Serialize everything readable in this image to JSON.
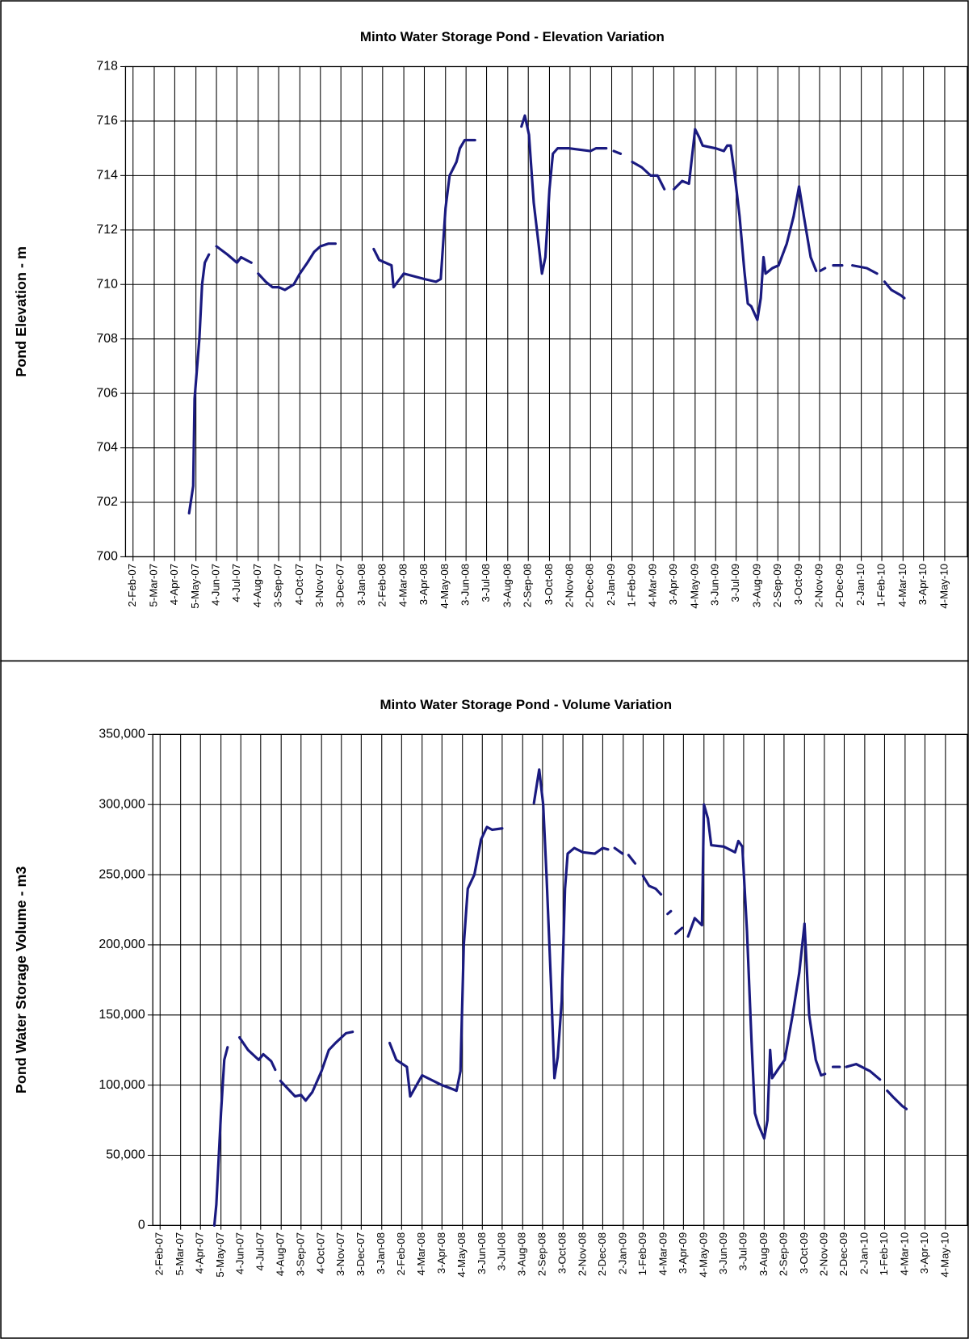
{
  "chart_data": [
    {
      "type": "line",
      "title": "Minto Water Storage Pond - Elevation Variation",
      "y_label": "Pond Elevation - m",
      "grid": true,
      "xlim": [
        "2007-01-22",
        "2010-06-06"
      ],
      "ylim": [
        700,
        718
      ],
      "yticks": [
        700,
        702,
        704,
        706,
        708,
        710,
        712,
        714,
        716,
        718
      ],
      "xticks": [
        {
          "value": "2007-02-02",
          "label": "2-Feb-07"
        },
        {
          "value": "2007-03-05",
          "label": "5-Mar-07"
        },
        {
          "value": "2007-04-04",
          "label": "4-Apr-07"
        },
        {
          "value": "2007-05-05",
          "label": "5-May-07"
        },
        {
          "value": "2007-06-04",
          "label": "4-Jun-07"
        },
        {
          "value": "2007-07-04",
          "label": "4-Jul-07"
        },
        {
          "value": "2007-08-04",
          "label": "4-Aug-07"
        },
        {
          "value": "2007-09-03",
          "label": "3-Sep-07"
        },
        {
          "value": "2007-10-04",
          "label": "4-Oct-07"
        },
        {
          "value": "2007-11-03",
          "label": "3-Nov-07"
        },
        {
          "value": "2007-12-03",
          "label": "3-Dec-07"
        },
        {
          "value": "2008-01-03",
          "label": "3-Jan-08"
        },
        {
          "value": "2008-02-02",
          "label": "2-Feb-08"
        },
        {
          "value": "2008-03-04",
          "label": "4-Mar-08"
        },
        {
          "value": "2008-04-03",
          "label": "3-Apr-08"
        },
        {
          "value": "2008-05-04",
          "label": "4-May-08"
        },
        {
          "value": "2008-06-03",
          "label": "3-Jun-08"
        },
        {
          "value": "2008-07-03",
          "label": "3-Jul-08"
        },
        {
          "value": "2008-08-03",
          "label": "3-Aug-08"
        },
        {
          "value": "2008-09-02",
          "label": "2-Sep-08"
        },
        {
          "value": "2008-10-03",
          "label": "3-Oct-08"
        },
        {
          "value": "2008-11-02",
          "label": "2-Nov-08"
        },
        {
          "value": "2008-12-02",
          "label": "2-Dec-08"
        },
        {
          "value": "2009-01-02",
          "label": "2-Jan-09"
        },
        {
          "value": "2009-02-01",
          "label": "1-Feb-09"
        },
        {
          "value": "2009-03-04",
          "label": "4-Mar-09"
        },
        {
          "value": "2009-04-03",
          "label": "3-Apr-09"
        },
        {
          "value": "2009-05-04",
          "label": "4-May-09"
        },
        {
          "value": "2009-06-03",
          "label": "3-Jun-09"
        },
        {
          "value": "2009-07-03",
          "label": "3-Jul-09"
        },
        {
          "value": "2009-08-03",
          "label": "3-Aug-09"
        },
        {
          "value": "2009-09-02",
          "label": "2-Sep-09"
        },
        {
          "value": "2009-10-03",
          "label": "3-Oct-09"
        },
        {
          "value": "2009-11-02",
          "label": "2-Nov-09"
        },
        {
          "value": "2009-12-02",
          "label": "2-Dec-09"
        },
        {
          "value": "2010-01-02",
          "label": "2-Jan-10"
        },
        {
          "value": "2010-02-01",
          "label": "1-Feb-10"
        },
        {
          "value": "2010-03-04",
          "label": "4-Mar-10"
        },
        {
          "value": "2010-04-03",
          "label": "3-Apr-10"
        },
        {
          "value": "2010-05-04",
          "label": "4-May-10"
        }
      ],
      "x": [
        "2007-04-25",
        "2007-05-01",
        "2007-05-03",
        "2007-05-10",
        "2007-05-14",
        "2007-05-18",
        "2007-05-24",
        "2007-05-29",
        "2007-06-04",
        "2007-06-20",
        "2007-07-04",
        "2007-07-10",
        "2007-07-25",
        "2007-07-30",
        "2007-08-04",
        "2007-08-15",
        "2007-08-25",
        "2007-09-03",
        "2007-09-12",
        "2007-09-25",
        "2007-10-04",
        "2007-10-15",
        "2007-10-25",
        "2007-11-03",
        "2007-11-15",
        "2007-11-25",
        "2007-12-20",
        "2008-01-20",
        "2008-01-28",
        "2008-02-15",
        "2008-02-18",
        "2008-03-04",
        "2008-04-03",
        "2008-04-20",
        "2008-04-27",
        "2008-05-04",
        "2008-05-10",
        "2008-05-20",
        "2008-05-25",
        "2008-06-01",
        "2008-06-16",
        "2008-07-20",
        "2008-08-23",
        "2008-08-28",
        "2008-09-03",
        "2008-09-10",
        "2008-09-17",
        "2008-09-22",
        "2008-09-27",
        "2008-10-03",
        "2008-10-08",
        "2008-10-15",
        "2008-11-01",
        "2008-12-02",
        "2008-12-10",
        "2008-12-25",
        "2008-12-30",
        "2009-01-05",
        "2009-01-15",
        "2009-01-24",
        "2009-02-01",
        "2009-02-15",
        "2009-02-28",
        "2009-03-10",
        "2009-03-20",
        "2009-03-27",
        "2009-04-03",
        "2009-04-15",
        "2009-04-25",
        "2009-05-04",
        "2009-05-10",
        "2009-05-15",
        "2009-06-03",
        "2009-06-15",
        "2009-06-20",
        "2009-06-25",
        "2009-07-01",
        "2009-07-08",
        "2009-07-15",
        "2009-07-20",
        "2009-07-25",
        "2009-08-03",
        "2009-08-08",
        "2009-08-12",
        "2009-08-15",
        "2009-08-25",
        "2009-09-03",
        "2009-09-15",
        "2009-09-25",
        "2009-10-03",
        "2009-10-10",
        "2009-10-20",
        "2009-10-28",
        "2009-10-31",
        "2009-11-03",
        "2009-11-10",
        "2009-11-16",
        "2009-11-22",
        "2009-12-05",
        "2009-12-12",
        "2009-12-20",
        "2010-01-10",
        "2010-01-25",
        "2010-01-30",
        "2010-02-05",
        "2010-02-15",
        "2010-03-01",
        "2010-03-06"
      ],
      "series": [
        {
          "color": "#1a1a80",
          "values": [
            701.6,
            702.6,
            705.8,
            708.0,
            710.0,
            710.8,
            711.1,
            null,
            711.4,
            711.1,
            710.8,
            711.0,
            710.8,
            null,
            710.4,
            710.1,
            709.9,
            709.9,
            709.8,
            710.0,
            710.4,
            710.8,
            711.2,
            711.4,
            711.5,
            711.5,
            null,
            711.3,
            710.9,
            710.7,
            709.9,
            710.4,
            710.2,
            710.1,
            710.2,
            712.8,
            714.0,
            714.5,
            715.0,
            715.3,
            715.3,
            null,
            715.8,
            716.2,
            715.5,
            713.0,
            711.5,
            710.4,
            711.0,
            713.5,
            714.8,
            715.0,
            715.0,
            714.9,
            715.0,
            715.0,
            null,
            714.9,
            714.8,
            null,
            714.5,
            714.3,
            714.0,
            714.0,
            713.5,
            null,
            713.5,
            713.8,
            713.7,
            715.7,
            715.4,
            715.1,
            715.0,
            714.9,
            715.1,
            715.1,
            714.0,
            712.5,
            710.5,
            709.3,
            709.2,
            708.7,
            709.5,
            711.0,
            710.4,
            710.6,
            710.7,
            711.5,
            712.5,
            713.6,
            712.5,
            711.0,
            710.5,
            null,
            710.5,
            710.6,
            null,
            710.7,
            710.7,
            null,
            710.7,
            710.6,
            710.4,
            null,
            710.1,
            709.8,
            709.6,
            709.5
          ]
        }
      ]
    },
    {
      "type": "line",
      "title": "Minto Water Storage Pond - Volume Variation",
      "y_label": "Pond Water Storage Volume - m3",
      "grid": true,
      "xlim": [
        "2007-01-22",
        "2010-06-06"
      ],
      "ylim": [
        0,
        350000
      ],
      "yticks": [
        0,
        {
          "value": 50000,
          "label": "50,000"
        },
        {
          "value": 100000,
          "label": "100,000"
        },
        {
          "value": 150000,
          "label": "150,000"
        },
        {
          "value": 200000,
          "label": "200,000"
        },
        {
          "value": 250000,
          "label": "250,000"
        },
        {
          "value": 300000,
          "label": "300,000"
        },
        {
          "value": 350000,
          "label": "350,000"
        }
      ],
      "xticks": [
        {
          "value": "2007-02-02",
          "label": "2-Feb-07"
        },
        {
          "value": "2007-03-05",
          "label": "5-Mar-07"
        },
        {
          "value": "2007-04-04",
          "label": "4-Apr-07"
        },
        {
          "value": "2007-05-05",
          "label": "5-May-07"
        },
        {
          "value": "2007-06-04",
          "label": "4-Jun-07"
        },
        {
          "value": "2007-07-04",
          "label": "4-Jul-07"
        },
        {
          "value": "2007-08-04",
          "label": "4-Aug-07"
        },
        {
          "value": "2007-09-03",
          "label": "3-Sep-07"
        },
        {
          "value": "2007-10-04",
          "label": "4-Oct-07"
        },
        {
          "value": "2007-11-03",
          "label": "3-Nov-07"
        },
        {
          "value": "2007-12-03",
          "label": "3-Dec-07"
        },
        {
          "value": "2008-01-03",
          "label": "3-Jan-08"
        },
        {
          "value": "2008-02-02",
          "label": "2-Feb-08"
        },
        {
          "value": "2008-03-04",
          "label": "4-Mar-08"
        },
        {
          "value": "2008-04-03",
          "label": "3-Apr-08"
        },
        {
          "value": "2008-05-04",
          "label": "4-May-08"
        },
        {
          "value": "2008-06-03",
          "label": "3-Jun-08"
        },
        {
          "value": "2008-07-03",
          "label": "3-Jul-08"
        },
        {
          "value": "2008-08-03",
          "label": "3-Aug-08"
        },
        {
          "value": "2008-09-02",
          "label": "2-Sep-08"
        },
        {
          "value": "2008-10-03",
          "label": "3-Oct-08"
        },
        {
          "value": "2008-11-02",
          "label": "2-Nov-08"
        },
        {
          "value": "2008-12-02",
          "label": "2-Dec-08"
        },
        {
          "value": "2009-01-02",
          "label": "2-Jan-09"
        },
        {
          "value": "2009-02-01",
          "label": "1-Feb-09"
        },
        {
          "value": "2009-03-04",
          "label": "4-Mar-09"
        },
        {
          "value": "2009-04-03",
          "label": "3-Apr-09"
        },
        {
          "value": "2009-05-04",
          "label": "4-May-09"
        },
        {
          "value": "2009-06-03",
          "label": "3-Jun-09"
        },
        {
          "value": "2009-07-03",
          "label": "3-Jul-09"
        },
        {
          "value": "2009-08-03",
          "label": "3-Aug-09"
        },
        {
          "value": "2009-09-02",
          "label": "2-Sep-09"
        },
        {
          "value": "2009-10-03",
          "label": "3-Oct-09"
        },
        {
          "value": "2009-11-02",
          "label": "2-Nov-09"
        },
        {
          "value": "2009-12-02",
          "label": "2-Dec-09"
        },
        {
          "value": "2010-01-02",
          "label": "2-Jan-10"
        },
        {
          "value": "2010-02-01",
          "label": "1-Feb-10"
        },
        {
          "value": "2010-03-04",
          "label": "4-Mar-10"
        },
        {
          "value": "2010-04-03",
          "label": "3-Apr-10"
        },
        {
          "value": "2010-05-04",
          "label": "4-May-10"
        }
      ],
      "x": [
        "2007-04-25",
        "2007-04-28",
        "2007-05-05",
        "2007-05-10",
        "2007-05-15",
        "2007-05-24",
        "2007-06-02",
        "2007-06-15",
        "2007-07-01",
        "2007-07-08",
        "2007-07-20",
        "2007-07-26",
        "2007-07-30",
        "2007-08-03",
        "2007-08-15",
        "2007-08-25",
        "2007-09-03",
        "2007-09-10",
        "2007-09-20",
        "2007-10-04",
        "2007-10-15",
        "2007-10-25",
        "2007-11-10",
        "2007-11-20",
        "2007-12-20",
        "2008-01-15",
        "2008-01-25",
        "2008-02-10",
        "2008-02-15",
        "2008-03-04",
        "2008-04-03",
        "2008-04-20",
        "2008-04-25",
        "2008-05-01",
        "2008-05-06",
        "2008-05-12",
        "2008-05-22",
        "2008-06-01",
        "2008-06-10",
        "2008-06-18",
        "2008-07-03",
        "2008-07-25",
        "2008-08-20",
        "2008-08-28",
        "2008-09-03",
        "2008-09-08",
        "2008-09-15",
        "2008-09-20",
        "2008-09-25",
        "2008-10-01",
        "2008-10-06",
        "2008-10-10",
        "2008-10-20",
        "2008-11-02",
        "2008-11-20",
        "2008-12-02",
        "2008-12-10",
        "2008-12-15",
        "2008-12-20",
        "2009-01-01",
        "2009-01-05",
        "2009-01-10",
        "2009-01-20",
        "2009-01-26",
        "2009-02-01",
        "2009-02-10",
        "2009-02-20",
        "2009-02-28",
        "2009-03-05",
        "2009-03-10",
        "2009-03-15",
        "2009-03-18",
        "2009-03-22",
        "2009-04-01",
        "2009-04-05",
        "2009-04-10",
        "2009-04-20",
        "2009-05-01",
        "2009-05-04",
        "2009-05-10",
        "2009-05-15",
        "2009-06-03",
        "2009-06-20",
        "2009-06-25",
        "2009-07-01",
        "2009-07-08",
        "2009-07-15",
        "2009-07-20",
        "2009-07-25",
        "2009-08-03",
        "2009-08-08",
        "2009-08-12",
        "2009-08-15",
        "2009-08-25",
        "2009-09-03",
        "2009-09-15",
        "2009-09-25",
        "2009-10-03",
        "2009-10-10",
        "2009-10-20",
        "2009-10-28",
        "2009-11-03",
        "2009-11-09",
        "2009-11-15",
        "2009-11-25",
        "2009-11-30",
        "2009-12-05",
        "2009-12-20",
        "2010-01-10",
        "2010-01-25",
        "2010-01-30",
        "2010-02-05",
        "2010-02-15",
        "2010-02-28",
        "2010-03-06"
      ],
      "series": [
        {
          "color": "#1a1a80",
          "values": [
            0,
            15000,
            80000,
            118000,
            127000,
            null,
            134000,
            125000,
            118000,
            122000,
            117000,
            111000,
            null,
            103000,
            97000,
            92000,
            93000,
            89000,
            95000,
            110000,
            125000,
            130000,
            137000,
            138000,
            null,
            130000,
            118000,
            113000,
            92000,
            107000,
            100000,
            97000,
            96000,
            110000,
            200000,
            240000,
            250000,
            275000,
            284000,
            282000,
            283000,
            null,
            301000,
            325000,
            300000,
            250000,
            170000,
            105000,
            120000,
            160000,
            240000,
            265000,
            269000,
            266000,
            265000,
            269000,
            268000,
            null,
            269000,
            265000,
            null,
            264000,
            258000,
            null,
            249000,
            242000,
            240000,
            236000,
            null,
            222000,
            224000,
            null,
            208000,
            212000,
            null,
            206000,
            219000,
            214000,
            300000,
            290000,
            271000,
            270000,
            266000,
            274000,
            270000,
            210000,
            130000,
            80000,
            72000,
            62000,
            75000,
            125000,
            105000,
            112000,
            118000,
            150000,
            180000,
            215000,
            150000,
            118000,
            107000,
            108000,
            null,
            113000,
            113000,
            null,
            113000,
            115000,
            110000,
            104000,
            null,
            96000,
            91000,
            85000,
            83000
          ]
        }
      ]
    }
  ]
}
